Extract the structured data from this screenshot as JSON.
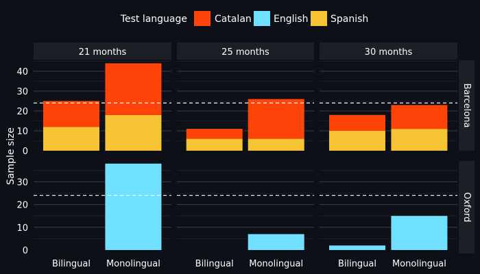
{
  "legend": {
    "title": "Test language",
    "items": [
      {
        "label": "Catalan",
        "color": "#ff4409"
      },
      {
        "label": "English",
        "color": "#6fe0ff"
      },
      {
        "label": "Spanish",
        "color": "#f6c433"
      }
    ]
  },
  "ylabel": "Sample size",
  "chart_data": {
    "type": "bar",
    "stacked": true,
    "legend_title": "Test language",
    "legend_position": "top",
    "ylabel": "Sample size",
    "facet_columns": [
      "21 months",
      "25 months",
      "30 months"
    ],
    "facet_rows": [
      "Barcelona",
      "Oxford"
    ],
    "categories": [
      "Bilingual",
      "Monolingual"
    ],
    "reference_line": 24,
    "row_scales": {
      "Barcelona": {
        "ylim": [
          0,
          45
        ],
        "ticks": [
          0,
          10,
          20,
          30,
          40
        ]
      },
      "Oxford": {
        "ylim": [
          0,
          44
        ],
        "ticks": [
          0,
          10,
          20,
          30
        ]
      }
    },
    "series_colors": {
      "Catalan": "#ff4409",
      "English": "#6fe0ff",
      "Spanish": "#f6c433"
    },
    "panels": [
      {
        "column": "21 months",
        "row": "Barcelona",
        "stacks": [
          {
            "category": "Bilingual",
            "segments": [
              {
                "series": "Spanish",
                "value": 12
              },
              {
                "series": "Catalan",
                "value": 13
              }
            ]
          },
          {
            "category": "Monolingual",
            "segments": [
              {
                "series": "Spanish",
                "value": 18
              },
              {
                "series": "Catalan",
                "value": 26
              }
            ]
          }
        ]
      },
      {
        "column": "25 months",
        "row": "Barcelona",
        "stacks": [
          {
            "category": "Bilingual",
            "segments": [
              {
                "series": "Spanish",
                "value": 6
              },
              {
                "series": "Catalan",
                "value": 5
              }
            ]
          },
          {
            "category": "Monolingual",
            "segments": [
              {
                "series": "Spanish",
                "value": 6
              },
              {
                "series": "Catalan",
                "value": 20
              }
            ]
          }
        ]
      },
      {
        "column": "30 months",
        "row": "Barcelona",
        "stacks": [
          {
            "category": "Bilingual",
            "segments": [
              {
                "series": "Spanish",
                "value": 10
              },
              {
                "series": "Catalan",
                "value": 8
              }
            ]
          },
          {
            "category": "Monolingual",
            "segments": [
              {
                "series": "Spanish",
                "value": 11
              },
              {
                "series": "Catalan",
                "value": 12
              }
            ]
          }
        ]
      },
      {
        "column": "21 months",
        "row": "Oxford",
        "stacks": [
          {
            "category": "Bilingual",
            "segments": []
          },
          {
            "category": "Monolingual",
            "segments": [
              {
                "series": "English",
                "value": 38
              }
            ]
          }
        ]
      },
      {
        "column": "25 months",
        "row": "Oxford",
        "stacks": [
          {
            "category": "Bilingual",
            "segments": []
          },
          {
            "category": "Monolingual",
            "segments": [
              {
                "series": "English",
                "value": 7
              }
            ]
          }
        ]
      },
      {
        "column": "30 months",
        "row": "Oxford",
        "stacks": [
          {
            "category": "Bilingual",
            "segments": [
              {
                "series": "English",
                "value": 2
              }
            ]
          },
          {
            "category": "Monolingual",
            "segments": [
              {
                "series": "English",
                "value": 15
              }
            ]
          }
        ]
      }
    ]
  }
}
